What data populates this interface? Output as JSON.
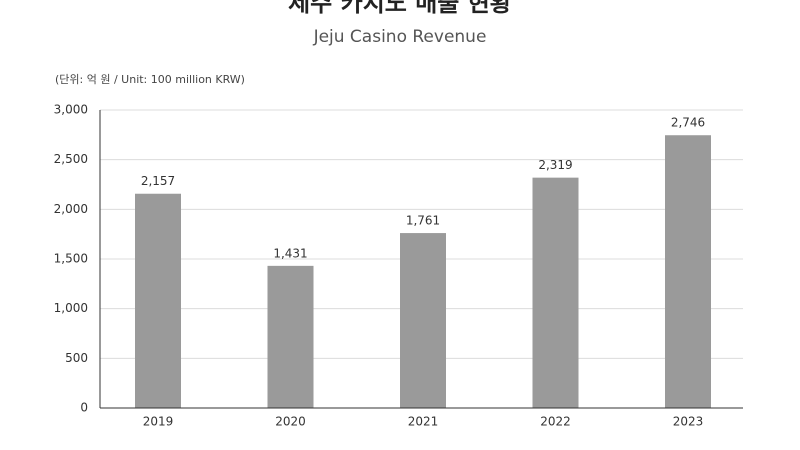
{
  "chart_data": {
    "type": "bar",
    "title": "제주 카지노 매출 현황",
    "subtitle": "Jeju Casino Revenue",
    "unit_note": "(단위: 억 원 / Unit: 100 million KRW)",
    "categories": [
      "2019",
      "2020",
      "2021",
      "2022",
      "2023"
    ],
    "values": [
      2157,
      1431,
      1761,
      2319,
      2746
    ],
    "value_labels": [
      "2,157",
      "1,431",
      "1,761",
      "2,319",
      "2,746"
    ],
    "color": "#9a9a9a",
    "ylim": [
      0,
      3000
    ],
    "yticks": [
      0,
      500,
      {
        "value": 1000,
        "label": "1,000"
      },
      {
        "value": 1500,
        "label": "1,500"
      },
      {
        "value": 2000,
        "label": "2,000"
      },
      {
        "value": 2500,
        "label": "2,500"
      },
      {
        "value": 3000,
        "label": "3,000"
      }
    ],
    "grid": true
  }
}
